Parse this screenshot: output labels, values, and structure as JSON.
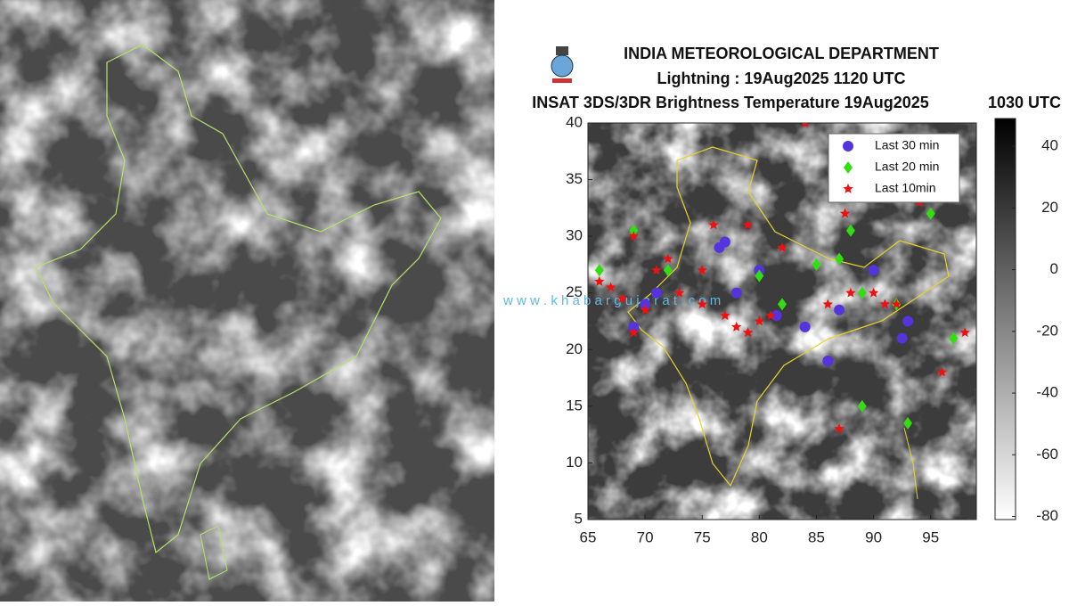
{
  "map": {
    "header": {
      "org": "INDIA METEOROLOGICAL DEPARTMENT",
      "subtitle": "Lightning : 19Aug2025 1120 UTC",
      "title": "INSAT 3DS/3DR Brightness Temperature 19Aug2025",
      "time": "1030 UTC"
    },
    "watermark": "w w w . k h a b a r g u j a r a t . c o m",
    "xlim": [
      65,
      99
    ],
    "xticks": [
      65,
      70,
      75,
      80,
      85,
      90,
      95
    ],
    "ylim": [
      5,
      40
    ],
    "yticks": [
      5,
      10,
      15,
      20,
      25,
      30,
      35,
      40
    ],
    "colorbar": {
      "lim": [
        -81,
        49
      ],
      "ticks": [
        40,
        20,
        0,
        -20,
        -40,
        -60,
        -80
      ]
    },
    "series": [
      {
        "name": "Last 30 min",
        "color": "#5533dd",
        "marker": "circle",
        "lon": [
          69,
          71,
          77,
          76.5,
          80,
          81.5,
          84,
          86,
          90,
          92.5,
          93,
          70,
          78,
          87
        ],
        "lat": [
          22,
          25,
          29.5,
          29,
          27,
          23,
          22,
          19,
          27,
          21,
          22.5,
          24,
          25,
          23.5
        ]
      },
      {
        "name": "Last 20 min",
        "color": "#33dd11",
        "marker": "diamond",
        "lon": [
          66,
          69,
          72,
          80,
          82,
          85,
          87,
          89,
          92,
          93,
          88,
          95,
          97,
          89
        ],
        "lat": [
          27,
          30.5,
          27,
          26.5,
          24,
          27.5,
          28,
          25,
          24,
          13.5,
          30.5,
          32,
          21,
          15
        ]
      },
      {
        "name": "Last 10min",
        "color": "#ee1111",
        "marker": "star",
        "lon": [
          66,
          68,
          69,
          70,
          71,
          73,
          75,
          77,
          78,
          79,
          80,
          81,
          76,
          79,
          82,
          86,
          88,
          90,
          91,
          92,
          87,
          94,
          96,
          98,
          84,
          87.5,
          75,
          72,
          67,
          69
        ],
        "lat": [
          26,
          24.5,
          30,
          23.5,
          27,
          25,
          24,
          23,
          22,
          21.5,
          22.5,
          23,
          31,
          31,
          29,
          24,
          25,
          25,
          24,
          24,
          13,
          33,
          18,
          21.5,
          40,
          32,
          27,
          28,
          25.5,
          21.5
        ]
      }
    ]
  }
}
